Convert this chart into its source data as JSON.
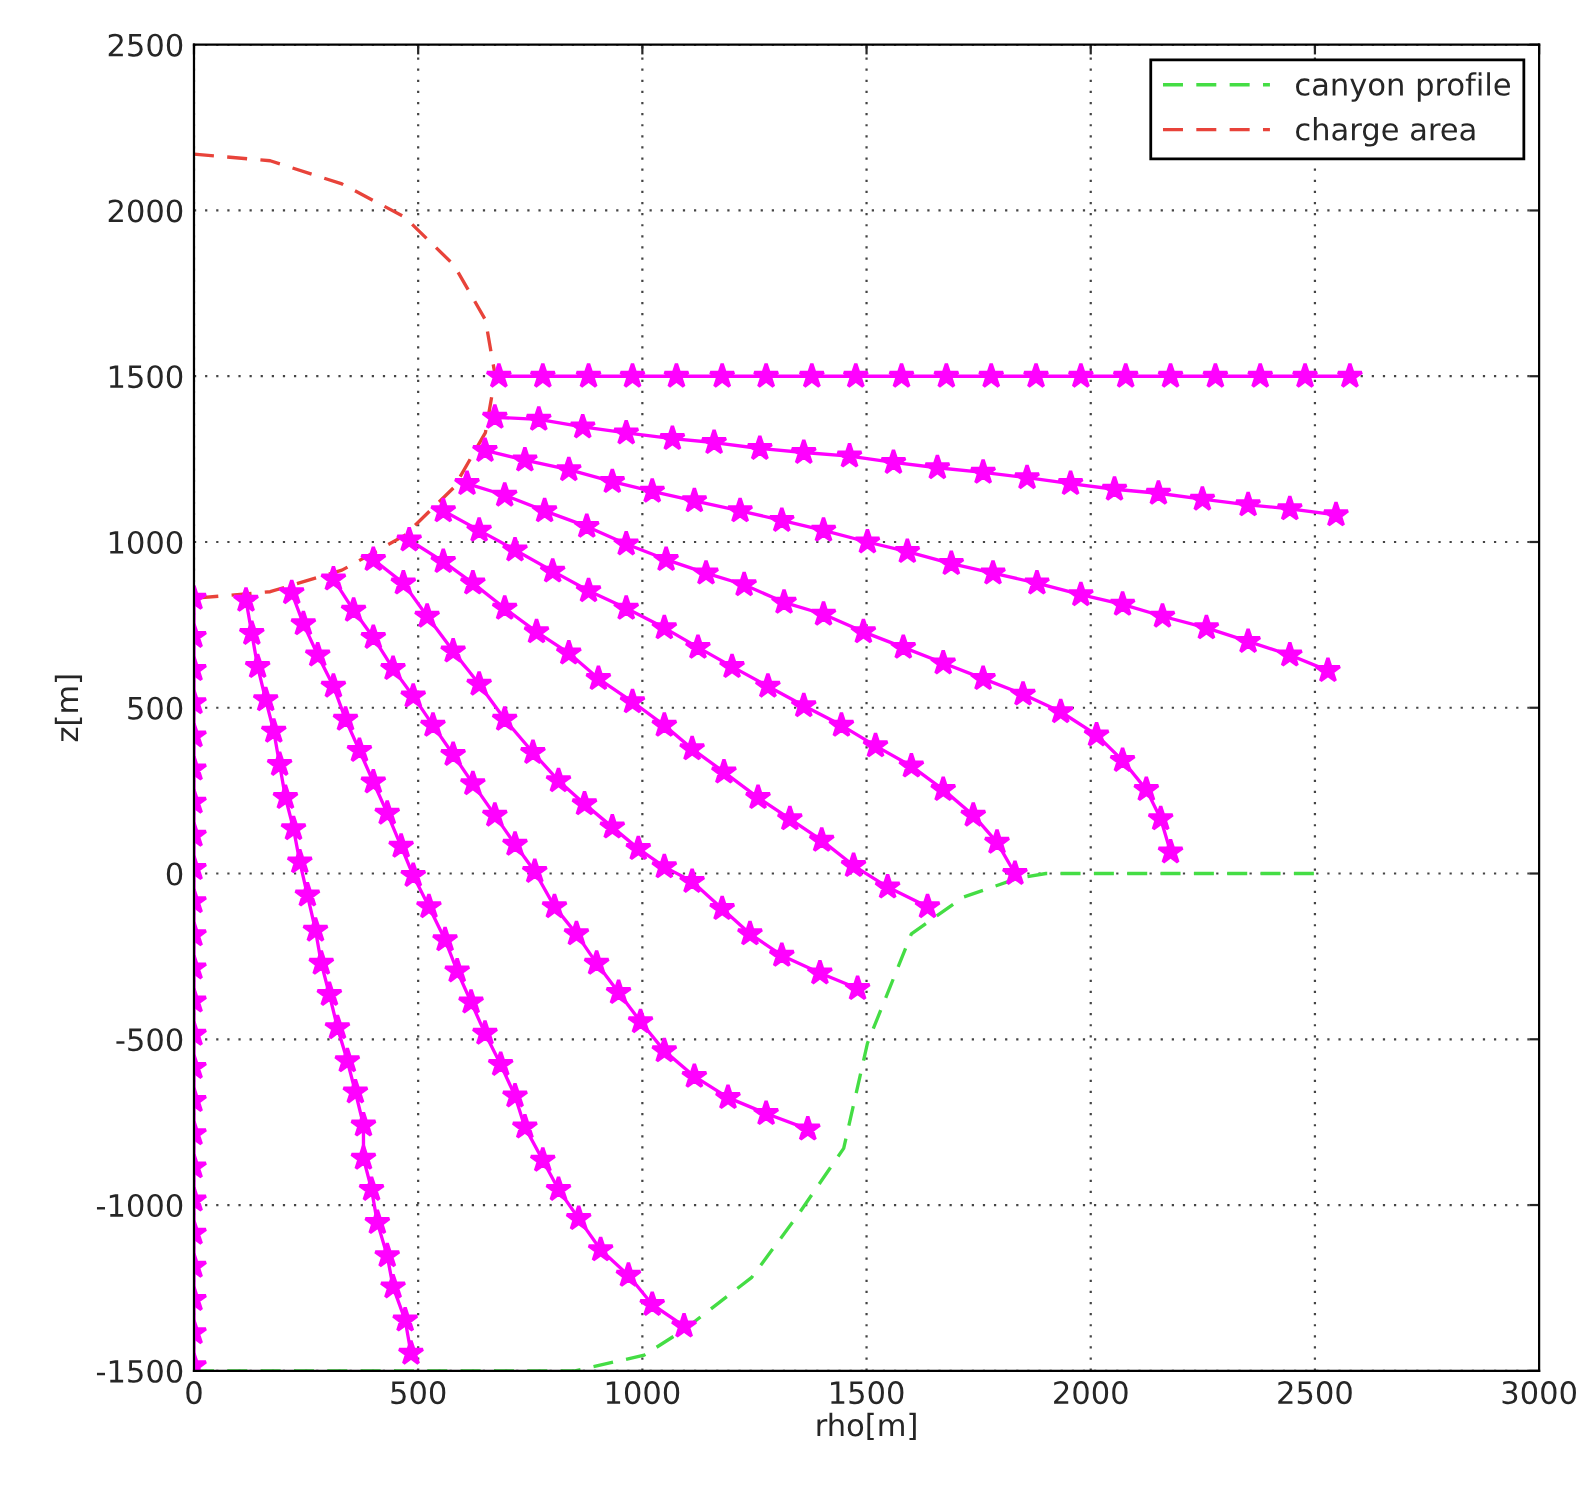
{
  "chart_data": {
    "type": "line",
    "xlabel": "rho[m]",
    "ylabel": "z[m]",
    "xlim": [
      0,
      3000
    ],
    "xticks": [
      0,
      500,
      1000,
      1500,
      2000,
      2500,
      3000
    ],
    "ylim": [
      -1500,
      2500
    ],
    "yticks": [
      -1500,
      -1000,
      -500,
      0,
      500,
      1000,
      1500,
      2000,
      2500
    ],
    "grid": true,
    "legend": "top right",
    "series": [
      {
        "name": "canyon profile",
        "color": "#44dd44",
        "line_style": "dashed",
        "x": [
          0,
          850,
          1004,
          1093,
          1244,
          1347,
          1449,
          1502,
          1600,
          1716,
          1836,
          1900,
          2500
        ],
        "values": [
          -1500,
          -1500,
          -1453,
          -1376,
          -1218,
          -1030,
          -829,
          -512,
          -182,
          -71,
          -15,
          0,
          0
        ]
      },
      {
        "name": "charge area",
        "color": "#e8433a",
        "line_style": "dashed",
        "x": [
          0,
          170,
          330,
          470,
          580,
          650,
          672,
          650,
          580,
          470,
          330,
          170,
          0
        ],
        "values": [
          2170,
          2150,
          2080,
          1980,
          1835,
          1670,
          1500,
          1330,
          1165,
          1020,
          915,
          850,
          830
        ]
      },
      {
        "color": "#ff00ff",
        "line_style": "solid",
        "marker": "star",
        "x": [
          680,
          778,
          880,
          978,
          1076,
          1178,
          1276,
          1378,
          1476,
          1578,
          1678,
          1778,
          1878,
          1978,
          2078,
          2178,
          2278,
          2378,
          2478,
          2578
        ],
        "values": [
          1500,
          1500,
          1500,
          1500,
          1500,
          1500,
          1500,
          1500,
          1500,
          1500,
          1500,
          1500,
          1500,
          1500,
          1500,
          1500,
          1500,
          1500,
          1500,
          1500
        ]
      },
      {
        "color": "#ff00ff",
        "line_style": "solid",
        "marker": "star",
        "x": [
          671,
          769,
          867,
          964,
          1067,
          1160,
          1262,
          1360,
          1462,
          1560,
          1658,
          1760,
          1858,
          1955,
          2053,
          2151,
          2249,
          2351,
          2444,
          2547
        ],
        "values": [
          1376,
          1370,
          1347,
          1329,
          1312,
          1300,
          1282,
          1270,
          1259,
          1240,
          1224,
          1210,
          1194,
          1176,
          1159,
          1147,
          1129,
          1112,
          1100,
          1082
        ]
      },
      {
        "color": "#ff00ff",
        "line_style": "solid",
        "marker": "star",
        "x": [
          649,
          738,
          836,
          933,
          1022,
          1116,
          1218,
          1311,
          1404,
          1502,
          1591,
          1689,
          1782,
          1880,
          1978,
          2071,
          2160,
          2258,
          2351,
          2444,
          2529
        ],
        "values": [
          1276,
          1247,
          1218,
          1182,
          1153,
          1124,
          1094,
          1065,
          1035,
          1000,
          971,
          935,
          906,
          876,
          841,
          812,
          776,
          741,
          700,
          659,
          612
        ]
      },
      {
        "color": "#ff00ff",
        "line_style": "solid",
        "marker": "star",
        "x": [
          609,
          693,
          782,
          876,
          964,
          1053,
          1142,
          1227,
          1316,
          1404,
          1493,
          1582,
          1671,
          1760,
          1849,
          1933,
          2013,
          2071,
          2124,
          2156,
          2178
        ],
        "values": [
          1176,
          1141,
          1094,
          1047,
          994,
          947,
          906,
          871,
          818,
          782,
          729,
          682,
          635,
          588,
          541,
          488,
          418,
          341,
          253,
          165,
          65
        ]
      },
      {
        "color": "#ff00ff",
        "line_style": "solid",
        "marker": "star",
        "x": [
          556,
          636,
          716,
          800,
          880,
          964,
          1049,
          1124,
          1200,
          1280,
          1360,
          1444,
          1520,
          1600,
          1671,
          1738,
          1791,
          1831
        ],
        "values": [
          1094,
          1035,
          976,
          912,
          853,
          800,
          741,
          682,
          624,
          565,
          506,
          447,
          385,
          324,
          253,
          176,
          94,
          0
        ]
      },
      {
        "color": "#ff00ff",
        "line_style": "solid",
        "marker": "star",
        "x": [
          480,
          556,
          622,
          693,
          764,
          836,
          902,
          978,
          1049,
          1111,
          1182,
          1258,
          1329,
          1400,
          1471,
          1547,
          1636
        ],
        "values": [
          1006,
          941,
          876,
          800,
          729,
          665,
          588,
          518,
          447,
          376,
          306,
          229,
          165,
          100,
          24,
          -41,
          -100
        ]
      },
      {
        "color": "#ff00ff",
        "line_style": "solid",
        "marker": "star",
        "x": [
          400,
          467,
          520,
          578,
          636,
          693,
          756,
          813,
          871,
          933,
          991,
          1049,
          1111,
          1178,
          1240,
          1311,
          1396,
          1480
        ],
        "values": [
          947,
          876,
          776,
          671,
          571,
          465,
          365,
          280,
          210,
          140,
          75,
          20,
          -24,
          -106,
          -182,
          -247,
          -300,
          -347
        ]
      },
      {
        "color": "#ff00ff",
        "line_style": "solid",
        "marker": "star",
        "x": [
          311,
          356,
          400,
          444,
          489,
          533,
          578,
          622,
          671,
          716,
          760,
          804,
          853,
          898,
          947,
          996,
          1049,
          1116,
          1191,
          1276,
          1369
        ],
        "values": [
          888,
          794,
          712,
          618,
          535,
          447,
          359,
          271,
          176,
          88,
          6,
          -100,
          -182,
          -271,
          -359,
          -447,
          -535,
          -612,
          -676,
          -724,
          -771
        ]
      },
      {
        "color": "#ff00ff",
        "line_style": "solid",
        "marker": "star",
        "x": [
          218,
          244,
          276,
          311,
          338,
          369,
          400,
          431,
          462,
          489,
          524,
          560,
          587,
          618,
          649,
          684,
          716,
          738,
          778,
          813,
          858,
          907,
          969,
          1022,
          1093
        ],
        "values": [
          847,
          753,
          659,
          565,
          465,
          371,
          276,
          182,
          82,
          -6,
          -100,
          -200,
          -294,
          -388,
          -482,
          -576,
          -671,
          -765,
          -865,
          -953,
          -1041,
          -1135,
          -1212,
          -1300,
          -1365
        ]
      },
      {
        "color": "#ff00ff",
        "line_style": "solid",
        "marker": "star",
        "x": [
          116,
          129,
          142,
          160,
          178,
          191,
          204,
          222,
          236,
          253,
          271,
          284,
          302,
          320,
          342,
          360,
          378,
          378,
          396,
          409,
          431,
          444,
          471,
          484
        ],
        "values": [
          824,
          724,
          624,
          524,
          429,
          329,
          229,
          135,
          35,
          -65,
          -171,
          -271,
          -365,
          -465,
          -565,
          -659,
          -759,
          -859,
          -953,
          -1053,
          -1153,
          -1247,
          -1347,
          -1447
        ]
      },
      {
        "color": "#ff00ff",
        "line_style": "solid",
        "marker": "star",
        "x": [
          0,
          0,
          0,
          0,
          0,
          0,
          0,
          0,
          0,
          0,
          0,
          0,
          0,
          0,
          0,
          0,
          0,
          0,
          0,
          0,
          0,
          0,
          0,
          0
        ],
        "values": [
          830,
          715,
          615,
          515,
          415,
          315,
          215,
          115,
          15,
          -85,
          -185,
          -285,
          -385,
          -485,
          -585,
          -685,
          -785,
          -885,
          -985,
          -1085,
          -1185,
          -1285,
          -1385,
          -1485
        ]
      }
    ]
  }
}
